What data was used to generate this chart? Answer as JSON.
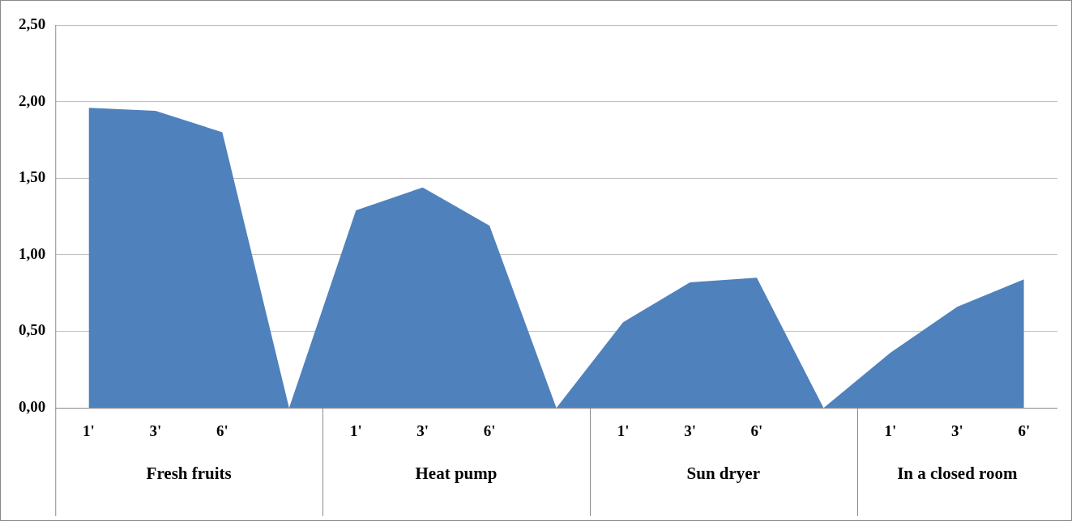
{
  "chart_data": {
    "type": "area",
    "categories": [
      "1'",
      "3'",
      "6'",
      null,
      "1'",
      "3'",
      "6'",
      null,
      "1'",
      "3'",
      "6'",
      null,
      "1'",
      "3'",
      "6'"
    ],
    "series": [
      {
        "color": "#4f81bd",
        "values": [
          1.96,
          1.94,
          1.8,
          0,
          1.29,
          1.44,
          1.19,
          0,
          0.56,
          0.82,
          0.85,
          0,
          0.36,
          0.66,
          0.84
        ]
      }
    ],
    "ylim": [
      0,
      2.5
    ],
    "yticks": [
      {
        "value": 0,
        "label": "0,00"
      },
      {
        "value": 0.5,
        "label": "0,50"
      },
      {
        "value": 1,
        "label": "1,00"
      },
      {
        "value": 1.5,
        "label": "1,50"
      },
      {
        "value": 2,
        "label": "2,00"
      },
      {
        "value": 2.5,
        "label": "2,50"
      }
    ],
    "annotations": [
      "Fresh fruits",
      "Heat pump",
      "Sun dryer",
      "In a closed room"
    ],
    "grid": "y",
    "legend": false,
    "marker": "none"
  }
}
